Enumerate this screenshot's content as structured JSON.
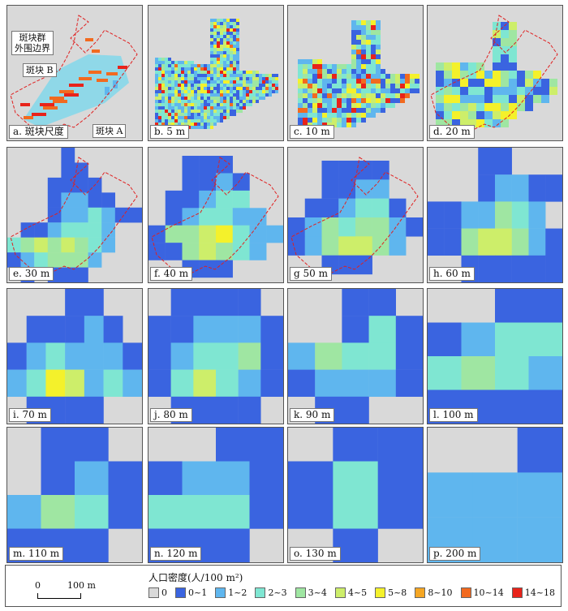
{
  "panels": [
    {
      "key": "a",
      "label": "a. 斑块尺度"
    },
    {
      "key": "b",
      "label": "b. 5 m"
    },
    {
      "key": "c",
      "label": "c. 10 m"
    },
    {
      "key": "d",
      "label": "d. 20 m"
    },
    {
      "key": "e",
      "label": "e. 30 m"
    },
    {
      "key": "f",
      "label": "f. 40 m"
    },
    {
      "key": "g",
      "label": "g 50 m"
    },
    {
      "key": "h",
      "label": "h. 60 m"
    },
    {
      "key": "i",
      "label": "i. 70 m"
    },
    {
      "key": "j",
      "label": "j. 80 m"
    },
    {
      "key": "k",
      "label": "k. 90 m"
    },
    {
      "key": "l",
      "label": "l. 100 m"
    },
    {
      "key": "m",
      "label": "m. 110 m"
    },
    {
      "key": "n",
      "label": "n. 120 m"
    },
    {
      "key": "o",
      "label": "o. 130 m"
    },
    {
      "key": "p",
      "label": "p. 200 m"
    }
  ],
  "callouts": {
    "group_boundary_line1": "斑块群",
    "group_boundary_line2": "外围边界",
    "patch_b": "斑块 B",
    "patch_a": "斑块 A"
  },
  "legend": {
    "title": "人口密度(人/100 m²)",
    "scale_left": "0",
    "scale_right": "100 m",
    "classes": [
      {
        "label": "0",
        "color": "#d9d9d9"
      },
      {
        "label": "0~1",
        "color": "#3a64e0"
      },
      {
        "label": "1~2",
        "color": "#5fb6ee"
      },
      {
        "label": "2~3",
        "color": "#7fe6d2"
      },
      {
        "label": "3~4",
        "color": "#9fe6a2"
      },
      {
        "label": "4~5",
        "color": "#cdee6a"
      },
      {
        "label": "5~8",
        "color": "#f4f12b"
      },
      {
        "label": "8~10",
        "color": "#f5a623"
      },
      {
        "label": "10~14",
        "color": "#f26a1f"
      },
      {
        "label": "14~18",
        "color": "#e8231a"
      }
    ]
  }
}
